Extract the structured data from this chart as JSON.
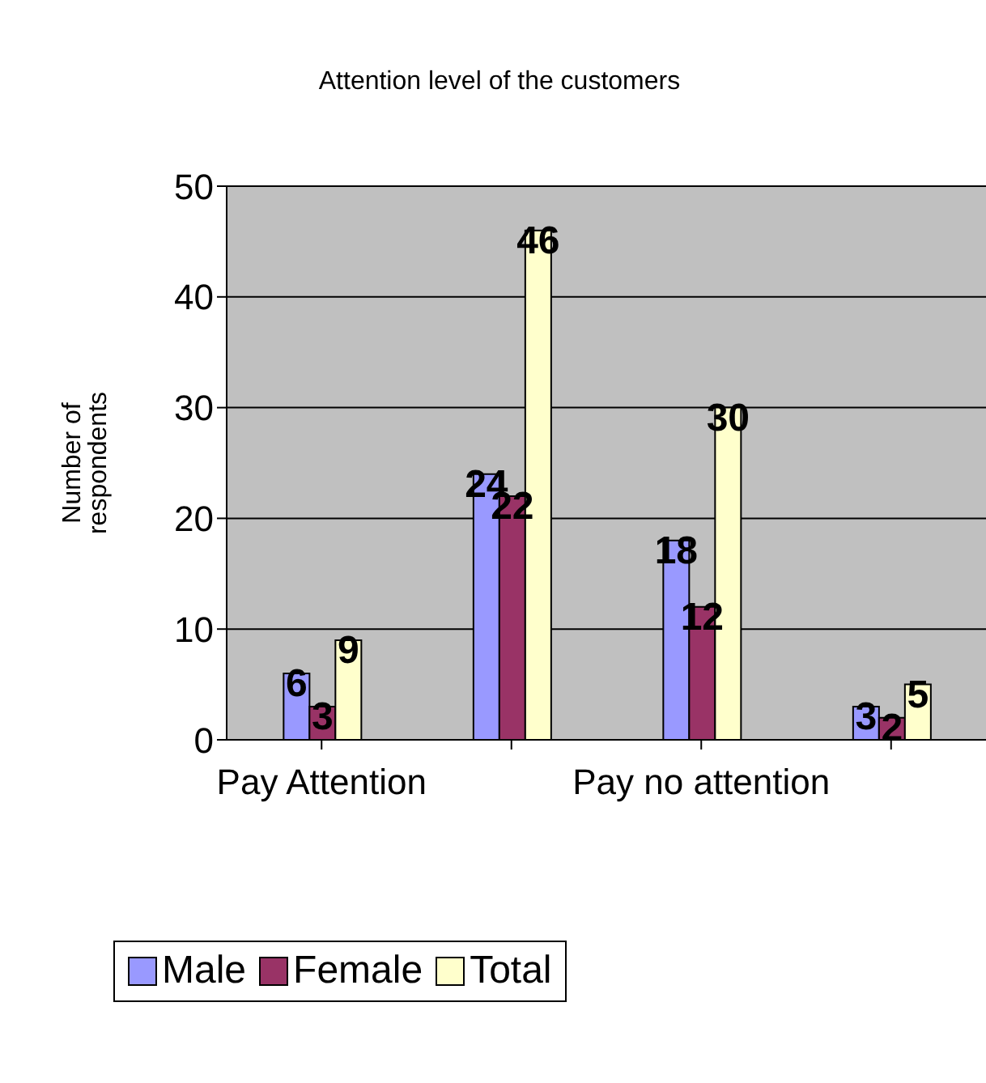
{
  "chart_data": {
    "type": "bar",
    "title": "Attention level of the customers",
    "ylabel": "Number of respondents",
    "categories": [
      "Pay Attention",
      null,
      "Pay no attention",
      null
    ],
    "series": [
      {
        "name": "Male",
        "color": "#9999ff",
        "values": [
          6,
          24,
          18,
          3
        ]
      },
      {
        "name": "Female",
        "color": "#993366",
        "values": [
          3,
          22,
          12,
          2
        ]
      },
      {
        "name": "Total",
        "color": "#ffffcc",
        "values": [
          9,
          46,
          30,
          5
        ]
      }
    ],
    "ylim": [
      0,
      50
    ],
    "yticks": [
      0,
      10,
      20,
      30,
      40,
      50
    ],
    "grid": "y",
    "legend": "bottom",
    "data_labels": true
  }
}
